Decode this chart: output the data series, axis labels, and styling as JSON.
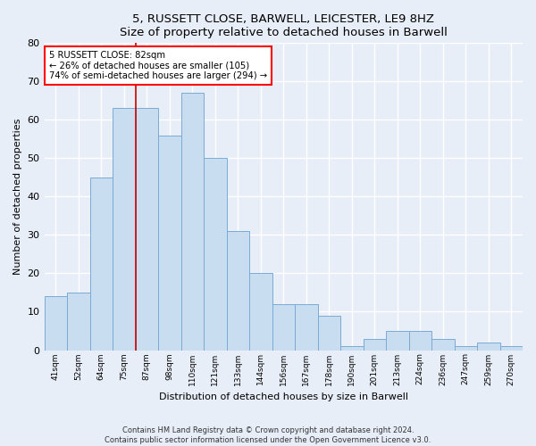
{
  "title1": "5, RUSSETT CLOSE, BARWELL, LEICESTER, LE9 8HZ",
  "title2": "Size of property relative to detached houses in Barwell",
  "xlabel": "Distribution of detached houses by size in Barwell",
  "ylabel": "Number of detached properties",
  "categories": [
    "41sqm",
    "52sqm",
    "64sqm",
    "75sqm",
    "87sqm",
    "98sqm",
    "110sqm",
    "121sqm",
    "133sqm",
    "144sqm",
    "156sqm",
    "167sqm",
    "178sqm",
    "190sqm",
    "201sqm",
    "213sqm",
    "224sqm",
    "236sqm",
    "247sqm",
    "259sqm",
    "270sqm"
  ],
  "values": [
    14,
    15,
    45,
    63,
    63,
    56,
    67,
    50,
    31,
    20,
    12,
    12,
    9,
    1,
    3,
    5,
    5,
    3,
    1,
    2,
    1
  ],
  "bar_color": "#c9ddf0",
  "bar_edge_color": "#7aaad4",
  "property_line_x": 3.5,
  "property_line_color": "#cc0000",
  "annotation_line1": "5 RUSSETT CLOSE: 82sqm",
  "annotation_line2": "← 26% of detached houses are smaller (105)",
  "annotation_line3": "74% of semi-detached houses are larger (294) →",
  "ylim": [
    0,
    80
  ],
  "yticks": [
    0,
    10,
    20,
    30,
    40,
    50,
    60,
    70,
    80
  ],
  "bg_color": "#e8eef8",
  "plot_bg_color": "#e8eef8",
  "grid_color": "#ffffff",
  "footer1": "Contains HM Land Registry data © Crown copyright and database right 2024.",
  "footer2": "Contains public sector information licensed under the Open Government Licence v3.0."
}
